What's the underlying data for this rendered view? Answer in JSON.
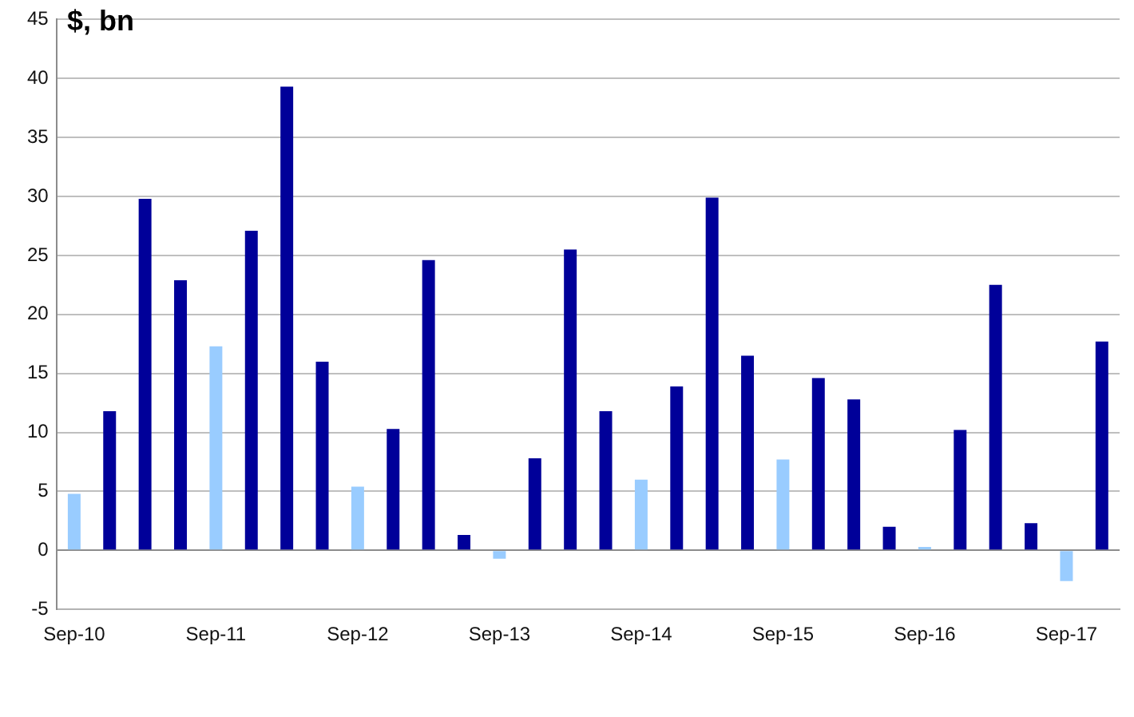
{
  "chart_data": {
    "type": "bar",
    "ylabel": "$, bn",
    "categories": [
      "Sep-10",
      null,
      null,
      null,
      "Sep-11",
      null,
      null,
      null,
      "Sep-12",
      null,
      null,
      null,
      "Sep-13",
      null,
      null,
      null,
      "Sep-14",
      null,
      null,
      null,
      "Sep-15",
      null,
      null,
      null,
      "Sep-16",
      null,
      null,
      null,
      "Sep-17",
      null
    ],
    "values": [
      4.8,
      11.8,
      29.8,
      22.9,
      17.3,
      27.1,
      39.3,
      16.0,
      5.4,
      10.3,
      24.6,
      1.3,
      -0.7,
      7.8,
      25.5,
      11.8,
      6.0,
      13.9,
      29.9,
      16.5,
      7.7,
      14.6,
      12.8,
      2.0,
      0.3,
      10.2,
      22.5,
      2.3,
      -2.6,
      17.7
    ],
    "colors": [
      "#99ccff",
      "#000099",
      "#000099",
      "#000099",
      "#99ccff",
      "#000099",
      "#000099",
      "#000099",
      "#99ccff",
      "#000099",
      "#000099",
      "#000099",
      "#99ccff",
      "#000099",
      "#000099",
      "#000099",
      "#99ccff",
      "#000099",
      "#000099",
      "#000099",
      "#99ccff",
      "#000099",
      "#000099",
      "#000099",
      "#99ccff",
      "#000099",
      "#000099",
      "#000099",
      "#99ccff",
      "#000099"
    ],
    "ylim": [
      -5,
      45
    ],
    "yticks": [
      -5,
      0,
      5,
      10,
      15,
      20,
      25,
      30,
      35,
      40,
      45
    ],
    "grid": "y"
  }
}
